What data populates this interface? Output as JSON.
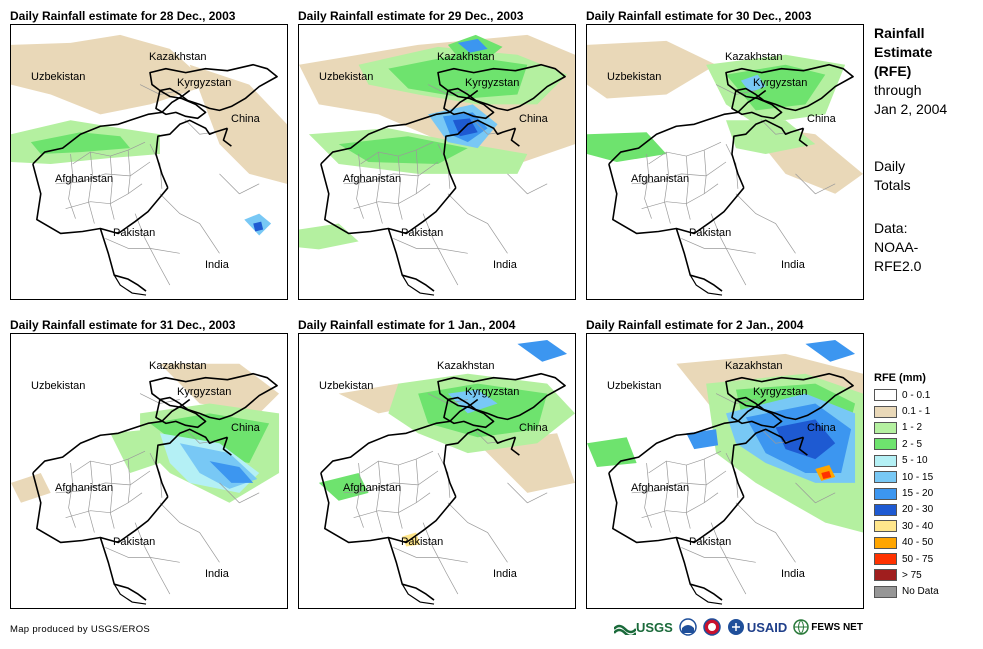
{
  "panels": [
    {
      "title": "Daily Rainfall estimate for 28 Dec., 2003"
    },
    {
      "title": "Daily Rainfall estimate for 29 Dec., 2003"
    },
    {
      "title": "Daily Rainfall estimate for 30 Dec., 2003"
    },
    {
      "title": "Daily Rainfall estimate for 31 Dec., 2003"
    },
    {
      "title": "Daily Rainfall estimate for 1 Jan., 2004"
    },
    {
      "title": "Daily Rainfall estimate for 2 Jan., 2004"
    }
  ],
  "map_labels": {
    "kazakhstan": "Kazakhstan",
    "uzbekistan": "Uzbekistan",
    "kyrgyzstan": "Kyrgyzstan",
    "china": "China",
    "afghanistan": "Afghanistan",
    "pakistan": "Pakistan",
    "india": "India"
  },
  "sidebar": {
    "title_line1": "Rainfall",
    "title_line2": "Estimate",
    "title_line3": "(RFE)",
    "through": "through",
    "date": "Jan 2, 2004",
    "daily1": "Daily",
    "daily2": "Totals",
    "data1": "Data:",
    "data2": "NOAA-",
    "data3": "RFE2.0"
  },
  "legend": {
    "title": "RFE (mm)",
    "items": [
      {
        "label": "0 - 0.1",
        "color": "#ffffff"
      },
      {
        "label": "0.1 - 1",
        "color": "#e9d8b8"
      },
      {
        "label": "1 - 2",
        "color": "#b4f0a0"
      },
      {
        "label": "2 - 5",
        "color": "#6ee36e"
      },
      {
        "label": "5 - 10",
        "color": "#b4f0f5"
      },
      {
        "label": "10 - 15",
        "color": "#78c8f5"
      },
      {
        "label": "15 - 20",
        "color": "#3c96f0"
      },
      {
        "label": "20 - 30",
        "color": "#1e5ad2"
      },
      {
        "label": "30 - 40",
        "color": "#ffe68c"
      },
      {
        "label": "40 - 50",
        "color": "#ffa500"
      },
      {
        "label": "50 - 75",
        "color": "#ff3200"
      },
      {
        "label": "> 75",
        "color": "#a01e1e"
      },
      {
        "label": "No Data",
        "color": "#969696"
      }
    ]
  },
  "credit": "Map produced by USGS/EROS",
  "logos": {
    "usgs": "USGS",
    "usaid": "USAID",
    "fewsnet": "FEWS NET"
  }
}
